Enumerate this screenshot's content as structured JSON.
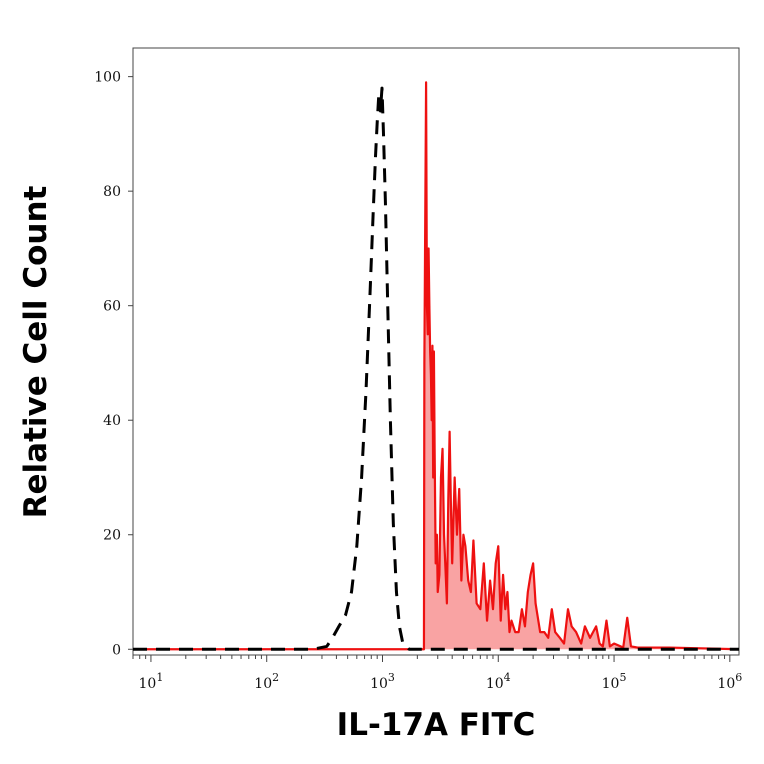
{
  "chart_data": {
    "type": "area",
    "xlabel": "IL-17A FITC",
    "ylabel": "Relative Cell Count",
    "x_scale": "log",
    "xlim": [
      7,
      1200000
    ],
    "ylim": [
      -1,
      105
    ],
    "y_ticks": [
      0,
      20,
      40,
      60,
      80,
      100
    ],
    "x_ticks": [
      {
        "value": 10,
        "base": "10",
        "exp": "1"
      },
      {
        "value": 100,
        "base": "10",
        "exp": "2"
      },
      {
        "value": 1000,
        "base": "10",
        "exp": "3"
      },
      {
        "value": 10000,
        "base": "10",
        "exp": "4"
      },
      {
        "value": 100000,
        "base": "10",
        "exp": "5"
      },
      {
        "value": 1000000,
        "base": "10",
        "exp": "6"
      }
    ],
    "grid": false,
    "colors": {
      "stained_line": "#ee1111",
      "stained_fill": "#f9a3a3",
      "control_line": "#000000"
    },
    "series": [
      {
        "style": "dashed-black",
        "points": [
          [
            7,
            0
          ],
          [
            100,
            0
          ],
          [
            250,
            0
          ],
          [
            330,
            0.5
          ],
          [
            370,
            2
          ],
          [
            420,
            4
          ],
          [
            480,
            6
          ],
          [
            540,
            10
          ],
          [
            600,
            18
          ],
          [
            660,
            30
          ],
          [
            720,
            45
          ],
          [
            780,
            62
          ],
          [
            830,
            76
          ],
          [
            870,
            86
          ],
          [
            900,
            92
          ],
          [
            930,
            97
          ],
          [
            960,
            94
          ],
          [
            990,
            98
          ],
          [
            1020,
            90
          ],
          [
            1060,
            78
          ],
          [
            1110,
            60
          ],
          [
            1170,
            40
          ],
          [
            1240,
            22
          ],
          [
            1320,
            10
          ],
          [
            1400,
            4
          ],
          [
            1500,
            1
          ],
          [
            1700,
            0
          ],
          [
            1200000,
            0
          ]
        ]
      },
      {
        "style": "filled-red",
        "points": [
          [
            7,
            0
          ],
          [
            2200,
            0
          ],
          [
            2280,
            0
          ],
          [
            2300,
            50
          ],
          [
            2340,
            75
          ],
          [
            2380,
            99
          ],
          [
            2420,
            60
          ],
          [
            2460,
            55
          ],
          [
            2500,
            70
          ],
          [
            2540,
            60
          ],
          [
            2580,
            52
          ],
          [
            2620,
            48
          ],
          [
            2660,
            40
          ],
          [
            2700,
            53
          ],
          [
            2740,
            30
          ],
          [
            2780,
            52
          ],
          [
            2820,
            35
          ],
          [
            2880,
            15
          ],
          [
            2950,
            20
          ],
          [
            3000,
            10
          ],
          [
            3100,
            13
          ],
          [
            3200,
            30
          ],
          [
            3300,
            35
          ],
          [
            3400,
            20
          ],
          [
            3500,
            14
          ],
          [
            3600,
            8
          ],
          [
            3700,
            26
          ],
          [
            3800,
            38
          ],
          [
            3900,
            25
          ],
          [
            4000,
            15
          ],
          [
            4200,
            30
          ],
          [
            4400,
            20
          ],
          [
            4600,
            28
          ],
          [
            4800,
            12
          ],
          [
            5000,
            20
          ],
          [
            5200,
            18
          ],
          [
            5500,
            12
          ],
          [
            5800,
            10
          ],
          [
            6100,
            19
          ],
          [
            6500,
            8
          ],
          [
            7000,
            7
          ],
          [
            7500,
            15
          ],
          [
            8000,
            5
          ],
          [
            8500,
            12
          ],
          [
            9000,
            7
          ],
          [
            9500,
            15
          ],
          [
            10000,
            18
          ],
          [
            10500,
            5
          ],
          [
            11000,
            13
          ],
          [
            11500,
            7
          ],
          [
            12000,
            10
          ],
          [
            12500,
            3
          ],
          [
            13000,
            5
          ],
          [
            14000,
            3
          ],
          [
            15000,
            3
          ],
          [
            16000,
            7
          ],
          [
            17000,
            4
          ],
          [
            18000,
            10
          ],
          [
            19000,
            13
          ],
          [
            20000,
            15
          ],
          [
            21000,
            8
          ],
          [
            23000,
            3
          ],
          [
            25000,
            3
          ],
          [
            27000,
            2
          ],
          [
            29000,
            7
          ],
          [
            31000,
            3
          ],
          [
            34000,
            2
          ],
          [
            37000,
            1
          ],
          [
            40000,
            7
          ],
          [
            43000,
            4
          ],
          [
            47000,
            3
          ],
          [
            52000,
            1
          ],
          [
            56000,
            4
          ],
          [
            62000,
            2
          ],
          [
            70000,
            4
          ],
          [
            75000,
            1
          ],
          [
            80000,
            0.5
          ],
          [
            86000,
            5
          ],
          [
            92000,
            0.5
          ],
          [
            100000,
            1
          ],
          [
            120000,
            0.3
          ],
          [
            130000,
            5.5
          ],
          [
            140000,
            0.5
          ],
          [
            160000,
            0.3
          ],
          [
            300000,
            0.3
          ],
          [
            1200000,
            0
          ]
        ]
      }
    ]
  }
}
